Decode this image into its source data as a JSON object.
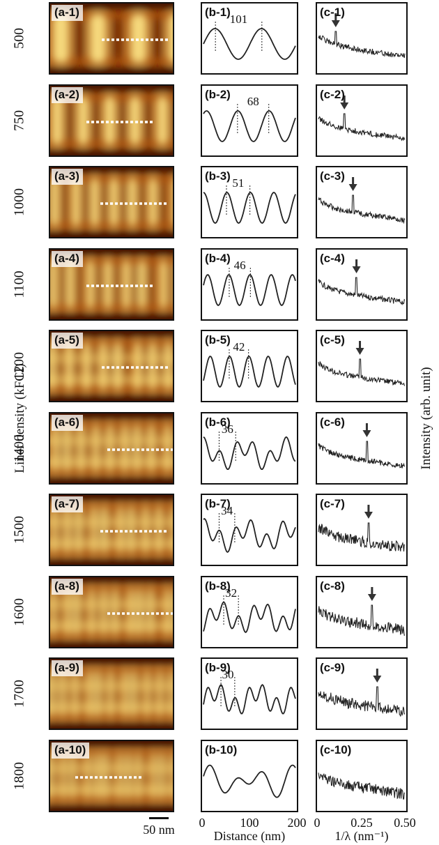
{
  "figure": {
    "y_axis_left_title": "Liner density (kFCI)",
    "y_axis_right_title": "Intensity (arb. unit)",
    "scale_bar_label": "50 nm",
    "colors": {
      "image_dark": "#3a0f03",
      "image_mid": "#c0620f",
      "image_light": "#ffe98a",
      "line": "#222222"
    }
  },
  "chart_data": [
    {
      "type": "line",
      "panel": "b",
      "xlabel": "Distance (nm)",
      "xlim": [
        0,
        200
      ],
      "xticks": [
        "0",
        "100",
        "200"
      ],
      "series": [
        {
          "label": "(b-1)",
          "density": "500",
          "period_nm": 101,
          "annotation": "101"
        },
        {
          "label": "(b-2)",
          "density": "750",
          "period_nm": 68,
          "annotation": "68"
        },
        {
          "label": "(b-3)",
          "density": "1000",
          "period_nm": 51,
          "annotation": "51"
        },
        {
          "label": "(b-4)",
          "density": "1100",
          "period_nm": 46,
          "annotation": "46"
        },
        {
          "label": "(b-5)",
          "density": "1200",
          "period_nm": 42,
          "annotation": "42"
        },
        {
          "label": "(b-6)",
          "density": "1400",
          "period_nm": 36,
          "annotation": "36"
        },
        {
          "label": "(b-7)",
          "density": "1500",
          "period_nm": 34,
          "annotation": "34"
        },
        {
          "label": "(b-8)",
          "density": "1600",
          "period_nm": 32,
          "annotation": "32"
        },
        {
          "label": "(b-9)",
          "density": "1700",
          "period_nm": 30,
          "annotation": "30"
        },
        {
          "label": "(b-10)",
          "density": "1800",
          "period_nm": null,
          "annotation": ""
        }
      ]
    },
    {
      "type": "line",
      "panel": "c",
      "xlabel": "1/λ (nm⁻¹)",
      "xlim": [
        0,
        0.5
      ],
      "xticks": [
        "0",
        "0.25",
        "0.50"
      ],
      "series": [
        {
          "label": "(c-1)",
          "density": "500",
          "peak_x": 0.1
        },
        {
          "label": "(c-2)",
          "density": "750",
          "peak_x": 0.15
        },
        {
          "label": "(c-3)",
          "density": "1000",
          "peak_x": 0.2
        },
        {
          "label": "(c-4)",
          "density": "1100",
          "peak_x": 0.22
        },
        {
          "label": "(c-5)",
          "density": "1200",
          "peak_x": 0.24
        },
        {
          "label": "(c-6)",
          "density": "1400",
          "peak_x": 0.28
        },
        {
          "label": "(c-7)",
          "density": "1500",
          "peak_x": 0.29
        },
        {
          "label": "(c-8)",
          "density": "1600",
          "peak_x": 0.31
        },
        {
          "label": "(c-9)",
          "density": "1700",
          "peak_x": 0.34
        },
        {
          "label": "(c-10)",
          "density": "1800",
          "peak_x": null
        }
      ]
    }
  ],
  "rows": [
    {
      "density": "500",
      "a_label": "(a-1)",
      "b_label": "(b-1)",
      "c_label": "(c-1)"
    },
    {
      "density": "750",
      "a_label": "(a-2)",
      "b_label": "(b-2)",
      "c_label": "(c-2)"
    },
    {
      "density": "1000",
      "a_label": "(a-3)",
      "b_label": "(b-3)",
      "c_label": "(c-3)"
    },
    {
      "density": "1100",
      "a_label": "(a-4)",
      "b_label": "(b-4)",
      "c_label": "(c-4)"
    },
    {
      "density": "1200",
      "a_label": "(a-5)",
      "b_label": "(b-5)",
      "c_label": "(c-5)"
    },
    {
      "density": "1400",
      "a_label": "(a-6)",
      "b_label": "(b-6)",
      "c_label": "(c-6)"
    },
    {
      "density": "1500",
      "a_label": "(a-7)",
      "b_label": "(b-7)",
      "c_label": "(c-7)"
    },
    {
      "density": "1600",
      "a_label": "(a-8)",
      "b_label": "(b-8)",
      "c_label": "(c-8)"
    },
    {
      "density": "1700",
      "a_label": "(a-9)",
      "b_label": "(b-9)",
      "c_label": "(c-9)"
    },
    {
      "density": "1800",
      "a_label": "(a-10)",
      "b_label": "(b-10)",
      "c_label": "(c-10)"
    }
  ]
}
